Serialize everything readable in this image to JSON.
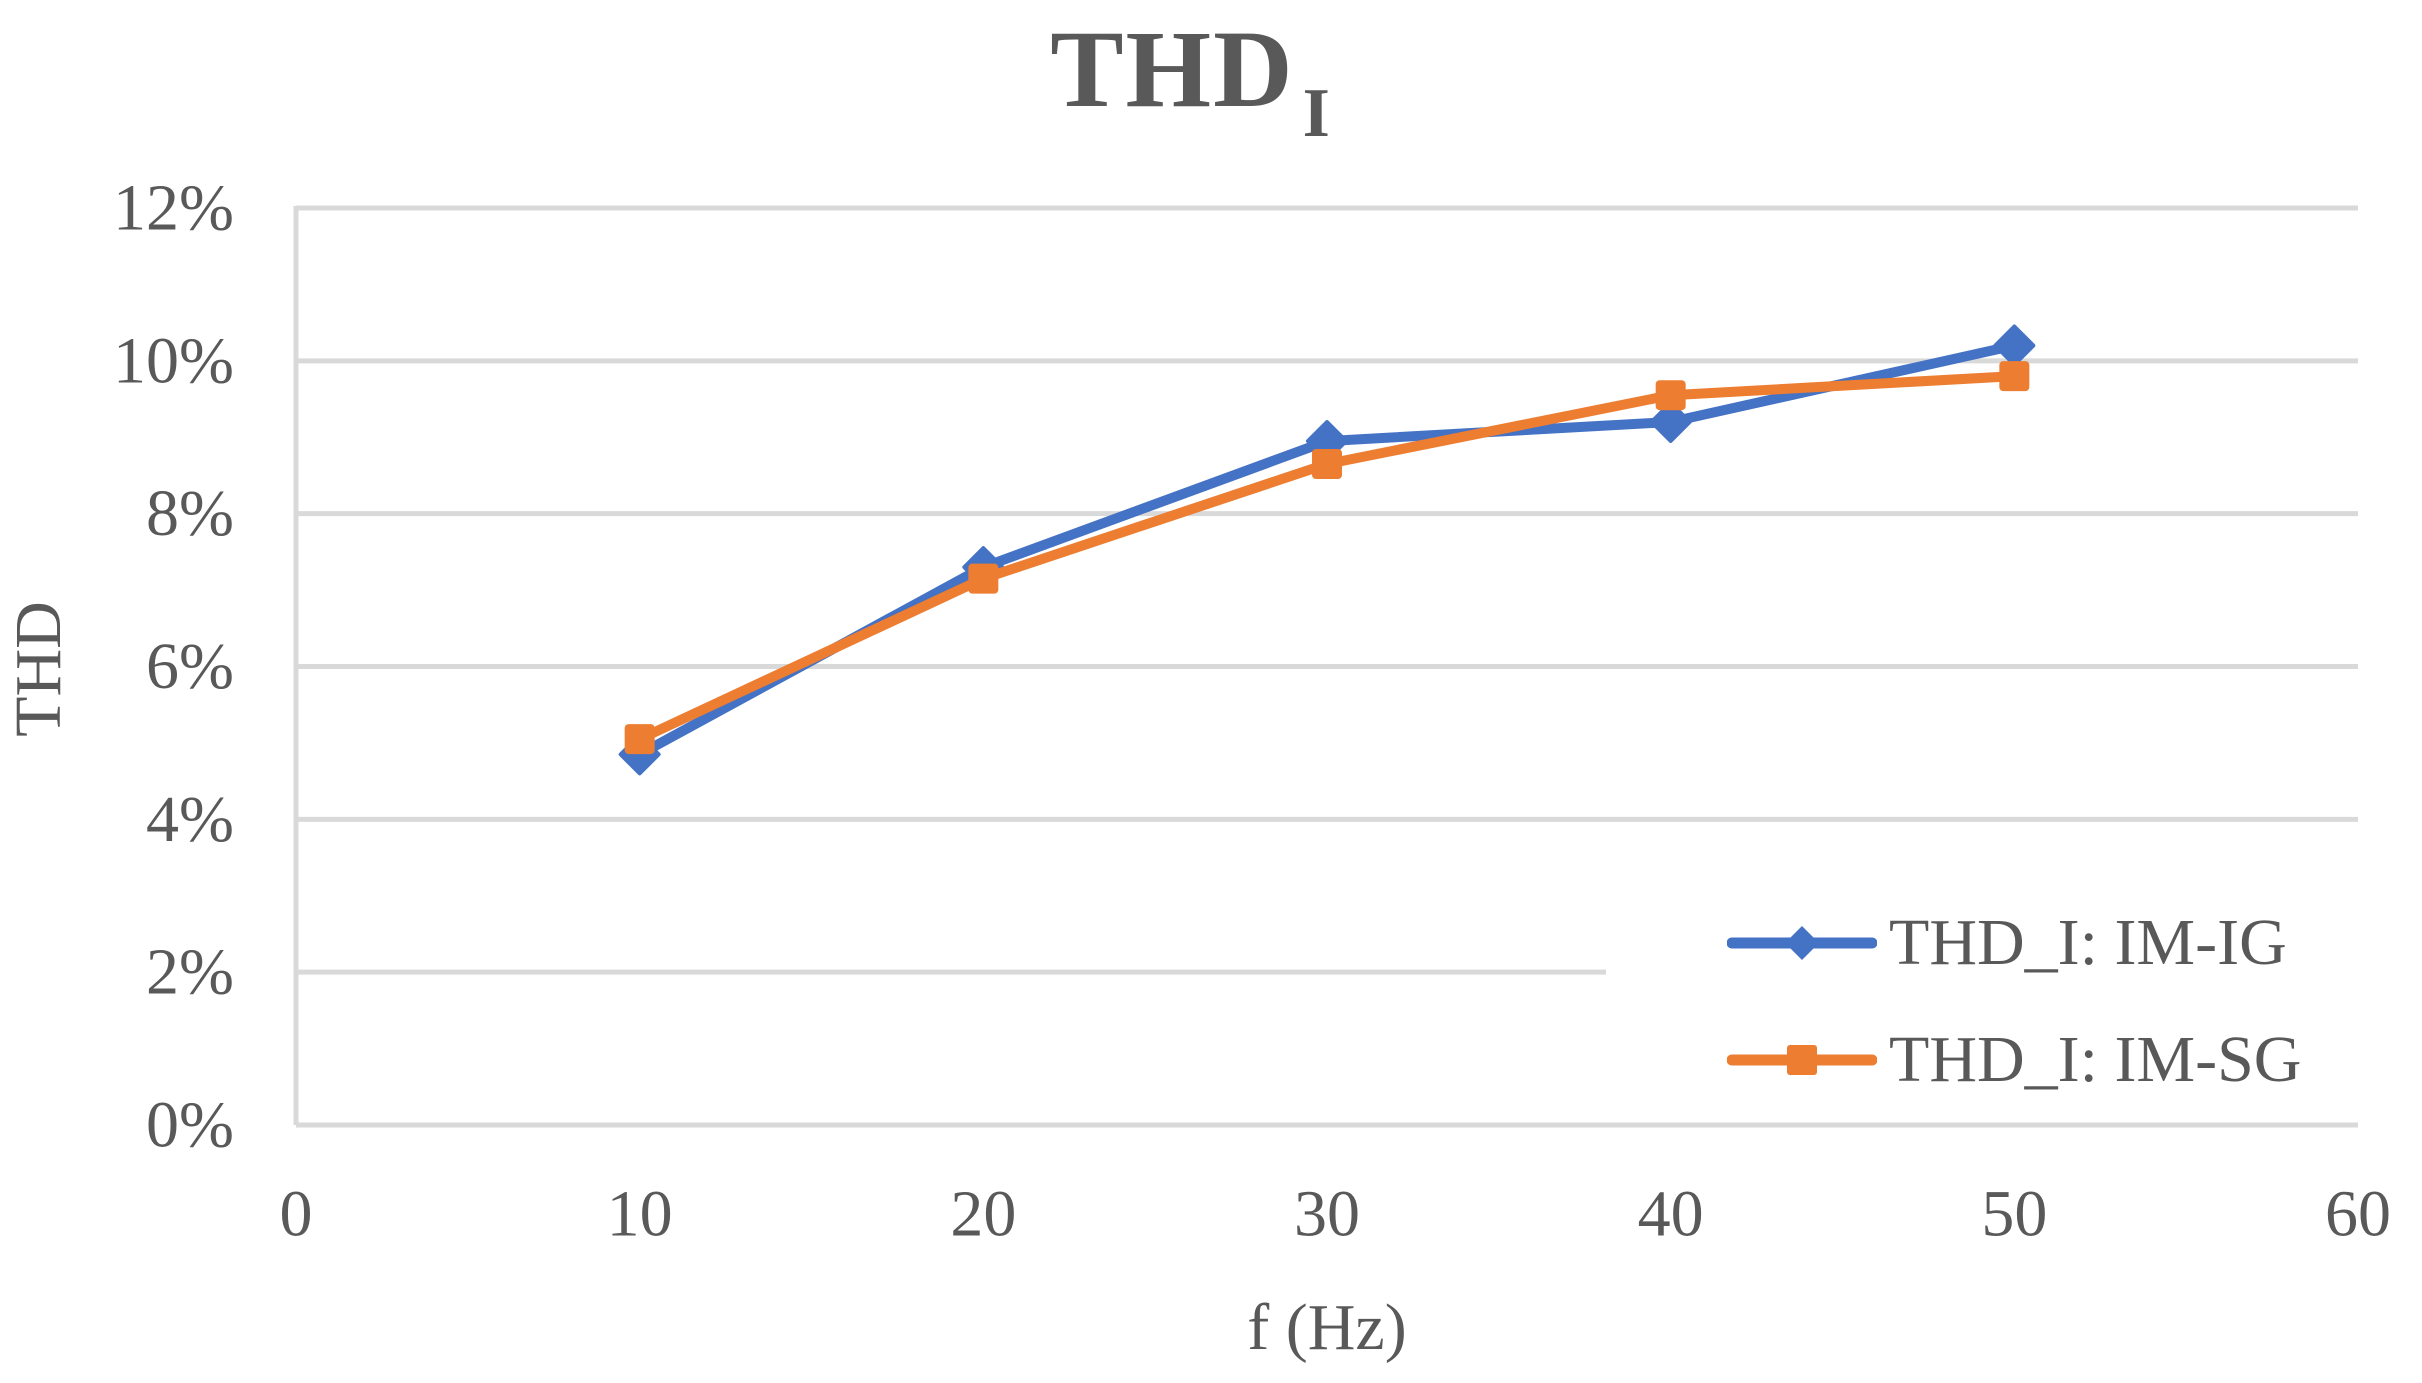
{
  "chart_data": {
    "type": "line",
    "title": "THD",
    "title_subscript": "I",
    "xlabel": "f (Hz)",
    "ylabel": "THD",
    "x": [
      10,
      20,
      30,
      40,
      50
    ],
    "series": [
      {
        "name": "THD_I: IM-IG",
        "color": "#4472C4",
        "marker": "diamond",
        "values": [
          4.85,
          7.3,
          8.95,
          9.2,
          10.2
        ]
      },
      {
        "name": "THD_I: IM-SG",
        "color": "#ED7D31",
        "marker": "square",
        "values": [
          5.05,
          7.15,
          8.65,
          9.55,
          9.8
        ]
      }
    ],
    "xlim": [
      0,
      60
    ],
    "x_ticks": [
      0,
      10,
      20,
      30,
      40,
      50,
      60
    ],
    "ylim_percent": [
      0,
      12
    ],
    "y_ticks": [
      {
        "value": 0,
        "label": "0%"
      },
      {
        "value": 2,
        "label": "2%"
      },
      {
        "value": 4,
        "label": "4%"
      },
      {
        "value": 6,
        "label": "6%"
      },
      {
        "value": 8,
        "label": "8%"
      },
      {
        "value": 10,
        "label": "10%"
      },
      {
        "value": 12,
        "label": "12%"
      }
    ],
    "grid": "horizontal",
    "legend_position": "inside-right",
    "colors": {
      "gridline": "#D9D9D9",
      "axis_line": "#D9D9D9",
      "text": "#595959",
      "background": "#FFFFFF"
    }
  }
}
